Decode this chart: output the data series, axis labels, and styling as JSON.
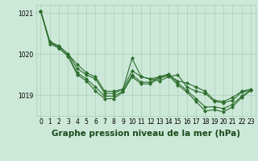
{
  "background_color": "#cce8d8",
  "grid_color": "#aacfba",
  "line_color": "#2d6e2d",
  "marker": "D",
  "hours": [
    0,
    1,
    2,
    3,
    4,
    5,
    6,
    7,
    8,
    9,
    10,
    11,
    12,
    13,
    14,
    15,
    16,
    17,
    18,
    19,
    20,
    21,
    22,
    23
  ],
  "series": [
    [
      1021.05,
      1020.3,
      1020.2,
      1020.0,
      1019.75,
      1019.55,
      1019.45,
      1019.1,
      1019.1,
      1019.15,
      1019.6,
      1019.45,
      1019.4,
      1019.45,
      1019.5,
      1019.35,
      1019.3,
      1019.2,
      1019.1,
      1018.88,
      1018.85,
      1018.95,
      1019.1,
      1019.15
    ],
    [
      1021.05,
      1020.3,
      1020.2,
      1020.0,
      1019.65,
      1019.5,
      1019.4,
      1019.05,
      1019.05,
      1019.15,
      1019.9,
      1019.45,
      1019.4,
      1019.35,
      1019.45,
      1019.5,
      1019.2,
      1019.1,
      1019.05,
      1018.85,
      1018.82,
      1018.88,
      1019.08,
      1019.12
    ],
    [
      1021.05,
      1020.3,
      1020.15,
      1019.95,
      1019.55,
      1019.4,
      1019.2,
      1018.98,
      1018.98,
      1019.1,
      1019.5,
      1019.32,
      1019.32,
      1019.45,
      1019.52,
      1019.3,
      1019.12,
      1018.92,
      1018.72,
      1018.72,
      1018.68,
      1018.78,
      1018.98,
      1019.12
    ],
    [
      1021.05,
      1020.25,
      1020.15,
      1019.95,
      1019.5,
      1019.35,
      1019.1,
      1018.92,
      1018.92,
      1019.08,
      1019.45,
      1019.28,
      1019.28,
      1019.42,
      1019.48,
      1019.25,
      1019.08,
      1018.85,
      1018.62,
      1018.65,
      1018.6,
      1018.72,
      1018.95,
      1019.12
    ]
  ],
  "ylim": [
    1018.5,
    1021.2
  ],
  "yticks": [
    1019,
    1020,
    1021
  ],
  "xlim": [
    -0.5,
    23.5
  ],
  "xtick_labels": [
    "0",
    "1",
    "2",
    "3",
    "4",
    "5",
    "6",
    "7",
    "8",
    "9",
    "10",
    "11",
    "12",
    "13",
    "14",
    "15",
    "16",
    "17",
    "18",
    "19",
    "20",
    "21",
    "22",
    "23"
  ],
  "marker_size": 2.2,
  "line_width": 0.8,
  "xlabel": "Graphe pression niveau de la mer (hPa)",
  "xlabel_fontsize": 7.5,
  "tick_fontsize": 5.5
}
